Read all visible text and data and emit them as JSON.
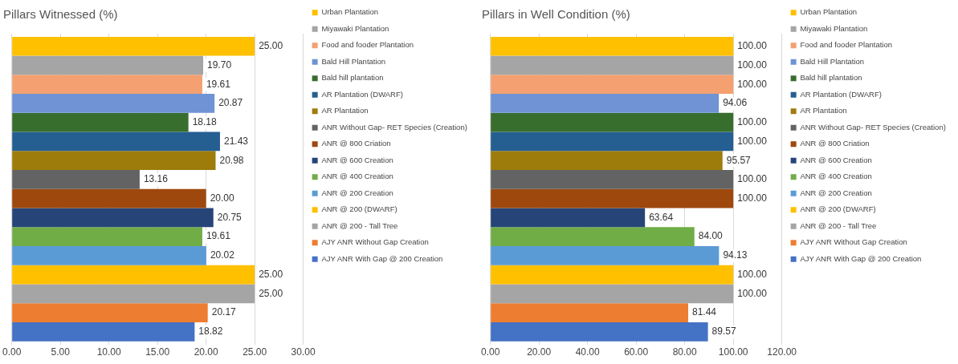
{
  "chart_data": [
    {
      "type": "bar",
      "title": "Pillars Witnessed (%)",
      "orientation": "horizontal",
      "categories": [
        null
      ],
      "tick_labels": "x",
      "grid": "x",
      "legend": "right",
      "xlim": [
        0,
        30
      ],
      "xticks": [
        {
          "value": 0,
          "label": "0.00"
        },
        {
          "value": 5,
          "label": "5.00"
        },
        {
          "value": 10,
          "label": "10.00"
        },
        {
          "value": 15,
          "label": "15.00"
        },
        {
          "value": 20,
          "label": "20.00"
        },
        {
          "value": 25,
          "label": "25.00"
        },
        {
          "value": 30,
          "label": "30.00"
        }
      ],
      "series": [
        {
          "name": "Urban Plantation",
          "color": "#ffc000",
          "values": [
            25
          ],
          "value_labels": [
            "25.00"
          ]
        },
        {
          "name": "Miyawaki Plantation",
          "color": "#a5a5a5",
          "values": [
            19.7
          ],
          "value_labels": [
            "19.70"
          ]
        },
        {
          "name": "Food and fooder Plantation",
          "color": "#f4a070",
          "values": [
            19.61
          ],
          "value_labels": [
            "19.61"
          ]
        },
        {
          "name": "Bald Hill Plantation",
          "color": "#6f93d4",
          "values": [
            20.87
          ],
          "value_labels": [
            "20.87"
          ]
        },
        {
          "name": "Bald hill plantation",
          "color": "#376e2e",
          "values": [
            18.18
          ],
          "value_labels": [
            "18.18"
          ]
        },
        {
          "name": "AR Plantation (DWARF)",
          "color": "#255e91",
          "values": [
            21.43
          ],
          "value_labels": [
            "21.43"
          ]
        },
        {
          "name": "AR Plantation",
          "color": "#9e7c0c",
          "values": [
            20.98
          ],
          "value_labels": [
            "20.98"
          ]
        },
        {
          "name": "ANR Without Gap- RET Species (Creation)",
          "color": "#636363",
          "values": [
            13.16
          ],
          "value_labels": [
            "13.16"
          ]
        },
        {
          "name": "ANR @ 800 Criation",
          "color": "#9e480e",
          "values": [
            20
          ],
          "value_labels": [
            "20.00"
          ]
        },
        {
          "name": "ANR @ 600 Creation",
          "color": "#264478",
          "values": [
            20.75
          ],
          "value_labels": [
            "20.75"
          ]
        },
        {
          "name": "ANR @ 400 Creation",
          "color": "#70ad47",
          "values": [
            19.61
          ],
          "value_labels": [
            "19.61"
          ]
        },
        {
          "name": "ANR @ 200 Creation",
          "color": "#5b9bd5",
          "values": [
            20.02
          ],
          "value_labels": [
            "20.02"
          ]
        },
        {
          "name": "ANR @ 200 (DWARF)",
          "color": "#ffc000",
          "values": [
            25
          ],
          "value_labels": [
            "25.00"
          ]
        },
        {
          "name": "ANR @ 200 - Tall Tree",
          "color": "#a5a5a5",
          "values": [
            25
          ],
          "value_labels": [
            "25.00"
          ]
        },
        {
          "name": "AJY ANR Without Gap Creation",
          "color": "#ed7d31",
          "values": [
            20.17
          ],
          "value_labels": [
            "20.17"
          ]
        },
        {
          "name": "AJY ANR With Gap @ 200 Creation",
          "color": "#4472c4",
          "values": [
            18.82
          ],
          "value_labels": [
            "18.82"
          ]
        }
      ]
    },
    {
      "type": "bar",
      "title": "Pillars in Well Condition (%)",
      "orientation": "horizontal",
      "categories": [
        null
      ],
      "tick_labels": "x",
      "grid": "x",
      "legend": "right",
      "xlim": [
        0,
        120
      ],
      "xticks": [
        {
          "value": 0,
          "label": "0.00"
        },
        {
          "value": 20,
          "label": "20.00"
        },
        {
          "value": 40,
          "label": "40.00"
        },
        {
          "value": 60,
          "label": "60.00"
        },
        {
          "value": 80,
          "label": "80.00"
        },
        {
          "value": 100,
          "label": "100.00"
        },
        {
          "value": 120,
          "label": "120.00"
        }
      ],
      "series": [
        {
          "name": "Urban Plantation",
          "color": "#ffc000",
          "values": [
            100
          ],
          "value_labels": [
            "100.00"
          ]
        },
        {
          "name": "Miyawaki Plantation",
          "color": "#a5a5a5",
          "values": [
            100
          ],
          "value_labels": [
            "100.00"
          ]
        },
        {
          "name": "Food and fooder Plantation",
          "color": "#f4a070",
          "values": [
            100
          ],
          "value_labels": [
            "100.00"
          ]
        },
        {
          "name": "Bald Hill Plantation",
          "color": "#6f93d4",
          "values": [
            94.06
          ],
          "value_labels": [
            "94.06"
          ]
        },
        {
          "name": "Bald hill plantation",
          "color": "#376e2e",
          "values": [
            100
          ],
          "value_labels": [
            "100.00"
          ]
        },
        {
          "name": "AR Plantation (DWARF)",
          "color": "#255e91",
          "values": [
            100
          ],
          "value_labels": [
            "100.00"
          ]
        },
        {
          "name": "AR Plantation",
          "color": "#9e7c0c",
          "values": [
            95.57
          ],
          "value_labels": [
            "95.57"
          ]
        },
        {
          "name": "ANR Without Gap- RET Species (Creation)",
          "color": "#636363",
          "values": [
            100
          ],
          "value_labels": [
            "100.00"
          ]
        },
        {
          "name": "ANR @ 800 Criation",
          "color": "#9e480e",
          "values": [
            100
          ],
          "value_labels": [
            "100.00"
          ]
        },
        {
          "name": "ANR @ 600 Creation",
          "color": "#264478",
          "values": [
            63.64
          ],
          "value_labels": [
            "63.64"
          ]
        },
        {
          "name": "ANR @ 400 Creation",
          "color": "#70ad47",
          "values": [
            84
          ],
          "value_labels": [
            "84.00"
          ]
        },
        {
          "name": "ANR @ 200 Creation",
          "color": "#5b9bd5",
          "values": [
            94.13
          ],
          "value_labels": [
            "94.13"
          ]
        },
        {
          "name": "ANR @ 200 (DWARF)",
          "color": "#ffc000",
          "values": [
            100
          ],
          "value_labels": [
            "100.00"
          ]
        },
        {
          "name": "ANR @ 200 - Tall Tree",
          "color": "#a5a5a5",
          "values": [
            100
          ],
          "value_labels": [
            "100.00"
          ]
        },
        {
          "name": "AJY ANR Without Gap Creation",
          "color": "#ed7d31",
          "values": [
            81.44
          ],
          "value_labels": [
            "81.44"
          ]
        },
        {
          "name": "AJY ANR With Gap @ 200 Creation",
          "color": "#4472c4",
          "values": [
            89.57
          ],
          "value_labels": [
            "89.57"
          ]
        }
      ]
    }
  ]
}
